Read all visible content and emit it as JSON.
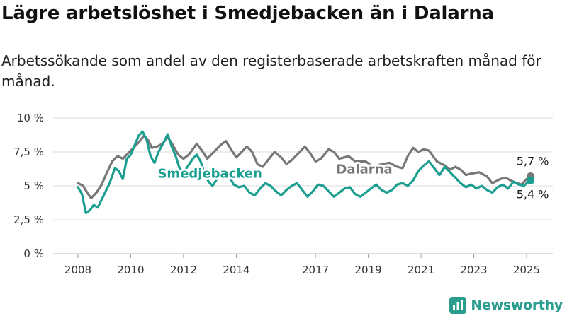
{
  "title": "Lägre arbetslöshet i Smedjebacken än i Dalarna",
  "subtitle": "Arbetssökande som andel av den registerbaserade arbetskraften månad för månad.",
  "brand": "Newsworthy",
  "colors": {
    "smedjebacken": "#1a9e8f",
    "dalarna": "#777777",
    "grid": "#dddddd",
    "brand": "#2a9d8f"
  },
  "chart_data": {
    "type": "line",
    "xlim": [
      2008,
      2025.33
    ],
    "ylim": [
      0,
      10
    ],
    "y_ticks": [
      {
        "value": 0,
        "label": "0 %"
      },
      {
        "value": 2.5,
        "label": "2,5 %"
      },
      {
        "value": 5,
        "label": "5 %"
      },
      {
        "value": 7.5,
        "label": "7,5 %"
      },
      {
        "value": 10,
        "label": "10 %"
      }
    ],
    "x_ticks": [
      {
        "value": 2008,
        "label": "2008"
      },
      {
        "value": 2010,
        "label": "2010"
      },
      {
        "value": 2012,
        "label": "2012"
      },
      {
        "value": 2014,
        "label": "2014"
      },
      {
        "value": 2017,
        "label": "2017"
      },
      {
        "value": 2019,
        "label": "2019"
      },
      {
        "value": 2021,
        "label": "2021"
      },
      {
        "value": 2023,
        "label": "2023"
      },
      {
        "value": 2025,
        "label": "2025"
      }
    ],
    "grid": true,
    "series": [
      {
        "name": "Dalarna",
        "color": "#777777",
        "end_label": "5,7 %",
        "points": [
          [
            2008.0,
            5.2
          ],
          [
            2008.2,
            5.0
          ],
          [
            2008.35,
            4.5
          ],
          [
            2008.5,
            4.1
          ],
          [
            2008.7,
            4.5
          ],
          [
            2008.9,
            5.1
          ],
          [
            2009.1,
            6.0
          ],
          [
            2009.3,
            6.8
          ],
          [
            2009.5,
            7.2
          ],
          [
            2009.7,
            7.0
          ],
          [
            2009.9,
            7.4
          ],
          [
            2010.1,
            7.8
          ],
          [
            2010.3,
            8.2
          ],
          [
            2010.5,
            8.7
          ],
          [
            2010.65,
            8.4
          ],
          [
            2010.8,
            7.8
          ],
          [
            2011.0,
            7.9
          ],
          [
            2011.2,
            8.1
          ],
          [
            2011.4,
            8.6
          ],
          [
            2011.6,
            8.0
          ],
          [
            2011.8,
            7.3
          ],
          [
            2012.0,
            7.0
          ],
          [
            2012.2,
            7.3
          ],
          [
            2012.5,
            8.1
          ],
          [
            2012.7,
            7.6
          ],
          [
            2012.9,
            7.0
          ],
          [
            2013.1,
            7.4
          ],
          [
            2013.4,
            8.0
          ],
          [
            2013.6,
            8.3
          ],
          [
            2013.8,
            7.7
          ],
          [
            2014.0,
            7.1
          ],
          [
            2014.2,
            7.5
          ],
          [
            2014.4,
            7.9
          ],
          [
            2014.6,
            7.5
          ],
          [
            2014.8,
            6.6
          ],
          [
            2015.0,
            6.4
          ],
          [
            2015.2,
            6.9
          ],
          [
            2015.45,
            7.5
          ],
          [
            2015.7,
            7.1
          ],
          [
            2015.9,
            6.6
          ],
          [
            2016.1,
            6.9
          ],
          [
            2016.4,
            7.5
          ],
          [
            2016.6,
            7.9
          ],
          [
            2016.8,
            7.4
          ],
          [
            2017.0,
            6.8
          ],
          [
            2017.2,
            7.0
          ],
          [
            2017.5,
            7.7
          ],
          [
            2017.7,
            7.5
          ],
          [
            2017.9,
            7.0
          ],
          [
            2018.1,
            7.1
          ],
          [
            2018.25,
            7.2
          ],
          [
            2018.5,
            6.8
          ],
          [
            2018.9,
            6.8
          ],
          [
            2019.2,
            6.4
          ],
          [
            2019.5,
            6.6
          ],
          [
            2019.8,
            6.7
          ],
          [
            2020.1,
            6.4
          ],
          [
            2020.3,
            6.3
          ],
          [
            2020.5,
            7.2
          ],
          [
            2020.7,
            7.8
          ],
          [
            2020.9,
            7.5
          ],
          [
            2021.1,
            7.7
          ],
          [
            2021.3,
            7.6
          ],
          [
            2021.6,
            6.8
          ],
          [
            2021.9,
            6.5
          ],
          [
            2022.1,
            6.2
          ],
          [
            2022.3,
            6.4
          ],
          [
            2022.5,
            6.2
          ],
          [
            2022.7,
            5.8
          ],
          [
            2022.9,
            5.9
          ],
          [
            2023.2,
            6.0
          ],
          [
            2023.5,
            5.7
          ],
          [
            2023.7,
            5.2
          ],
          [
            2024.0,
            5.5
          ],
          [
            2024.2,
            5.6
          ],
          [
            2024.5,
            5.3
          ],
          [
            2024.8,
            5.1
          ],
          [
            2025.0,
            5.5
          ],
          [
            2025.15,
            5.7
          ]
        ]
      },
      {
        "name": "Smedjebacken",
        "color": "#1a9e8f",
        "end_label": "5,4 %",
        "points": [
          [
            2008.0,
            4.9
          ],
          [
            2008.15,
            4.4
          ],
          [
            2008.3,
            3.0
          ],
          [
            2008.45,
            3.2
          ],
          [
            2008.6,
            3.6
          ],
          [
            2008.75,
            3.4
          ],
          [
            2008.95,
            4.2
          ],
          [
            2009.2,
            5.2
          ],
          [
            2009.4,
            6.3
          ],
          [
            2009.55,
            6.1
          ],
          [
            2009.7,
            5.5
          ],
          [
            2009.85,
            7.0
          ],
          [
            2010.0,
            7.3
          ],
          [
            2010.15,
            8.0
          ],
          [
            2010.3,
            8.7
          ],
          [
            2010.45,
            9.0
          ],
          [
            2010.6,
            8.4
          ],
          [
            2010.75,
            7.2
          ],
          [
            2010.9,
            6.7
          ],
          [
            2011.05,
            7.5
          ],
          [
            2011.25,
            8.2
          ],
          [
            2011.4,
            8.8
          ],
          [
            2011.55,
            7.9
          ],
          [
            2011.7,
            7.2
          ],
          [
            2011.85,
            6.3
          ],
          [
            2012.0,
            6.0
          ],
          [
            2012.15,
            6.4
          ],
          [
            2012.35,
            7.0
          ],
          [
            2012.5,
            7.3
          ],
          [
            2012.65,
            6.8
          ],
          [
            2012.8,
            5.9
          ],
          [
            2012.95,
            5.3
          ],
          [
            2013.1,
            5.0
          ],
          [
            2013.3,
            5.6
          ],
          [
            2013.5,
            6.2
          ],
          [
            2013.7,
            5.8
          ],
          [
            2013.9,
            5.1
          ],
          [
            2014.1,
            4.9
          ],
          [
            2014.3,
            5.0
          ],
          [
            2014.5,
            4.5
          ],
          [
            2014.7,
            4.3
          ],
          [
            2014.9,
            4.8
          ],
          [
            2015.1,
            5.2
          ],
          [
            2015.3,
            5.0
          ],
          [
            2015.5,
            4.6
          ],
          [
            2015.7,
            4.3
          ],
          [
            2015.9,
            4.7
          ],
          [
            2016.1,
            5.0
          ],
          [
            2016.3,
            5.2
          ],
          [
            2016.5,
            4.7
          ],
          [
            2016.7,
            4.2
          ],
          [
            2016.9,
            4.6
          ],
          [
            2017.1,
            5.1
          ],
          [
            2017.3,
            5.0
          ],
          [
            2017.5,
            4.6
          ],
          [
            2017.7,
            4.2
          ],
          [
            2017.9,
            4.5
          ],
          [
            2018.1,
            4.8
          ],
          [
            2018.3,
            4.9
          ],
          [
            2018.5,
            4.4
          ],
          [
            2018.7,
            4.2
          ],
          [
            2018.9,
            4.5
          ],
          [
            2019.1,
            4.8
          ],
          [
            2019.3,
            5.1
          ],
          [
            2019.5,
            4.7
          ],
          [
            2019.7,
            4.5
          ],
          [
            2019.9,
            4.7
          ],
          [
            2020.1,
            5.1
          ],
          [
            2020.3,
            5.2
          ],
          [
            2020.5,
            5.0
          ],
          [
            2020.7,
            5.4
          ],
          [
            2020.9,
            6.1
          ],
          [
            2021.1,
            6.5
          ],
          [
            2021.3,
            6.8
          ],
          [
            2021.5,
            6.3
          ],
          [
            2021.7,
            5.8
          ],
          [
            2021.9,
            6.4
          ],
          [
            2022.1,
            6.0
          ],
          [
            2022.3,
            5.6
          ],
          [
            2022.5,
            5.2
          ],
          [
            2022.7,
            4.9
          ],
          [
            2022.9,
            5.1
          ],
          [
            2023.1,
            4.8
          ],
          [
            2023.3,
            5.0
          ],
          [
            2023.5,
            4.7
          ],
          [
            2023.7,
            4.5
          ],
          [
            2023.9,
            4.9
          ],
          [
            2024.1,
            5.1
          ],
          [
            2024.3,
            4.8
          ],
          [
            2024.5,
            5.3
          ],
          [
            2024.7,
            5.1
          ],
          [
            2024.9,
            5.0
          ],
          [
            2025.05,
            5.3
          ],
          [
            2025.15,
            5.4
          ]
        ]
      }
    ],
    "annotations": [
      {
        "text": "Smedjebacken",
        "series": "Smedjebacken",
        "x": 2013.0,
        "y": 5.6
      },
      {
        "text": "Dalarna",
        "series": "Dalarna",
        "x": 2018.85,
        "y": 5.9
      }
    ]
  }
}
